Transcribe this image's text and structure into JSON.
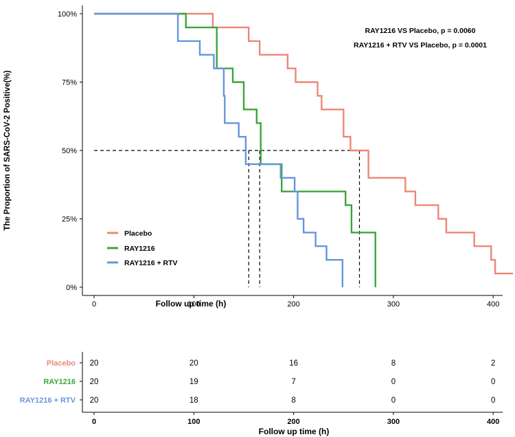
{
  "chart_data": {
    "type": "line",
    "subtype": "kaplan-meier-step",
    "title": "",
    "xlabel": "Follow up time (h)",
    "ylabel": "The Proportion of SARS-CoV-2 Positive(%)",
    "xlim": [
      -12,
      420
    ],
    "ylim": [
      0,
      1
    ],
    "xticks": [
      0,
      100,
      200,
      300,
      400
    ],
    "yticks": [
      0,
      0.25,
      0.5,
      0.75,
      1.0
    ],
    "ytick_labels": [
      "0%",
      "25%",
      "50%",
      "75%",
      "100%"
    ],
    "legend_position": "bottom-left",
    "colors": {
      "Placebo": "#ee8577",
      "RAY1216": "#3aa53a",
      "RAY1216 + RTV": "#6495e0"
    },
    "annotations": [
      "RAY1216 VS Placebo, p = 0.0060",
      "RAY1216 + RTV VS Placebo, p = 0.0001"
    ],
    "median_line": {
      "y": 0.5,
      "x_start": 0,
      "medians": [
        155,
        166,
        266
      ]
    },
    "series": [
      {
        "name": "Placebo",
        "color": "#ee8577",
        "x": [
          0,
          119,
          155,
          166,
          194,
          202,
          224,
          228,
          250,
          257,
          275,
          312,
          322,
          345,
          353,
          381,
          398,
          402,
          420
        ],
        "y": [
          1.0,
          0.95,
          0.9,
          0.85,
          0.8,
          0.75,
          0.7,
          0.65,
          0.55,
          0.5,
          0.4,
          0.35,
          0.3,
          0.25,
          0.2,
          0.15,
          0.1,
          0.05,
          0.05
        ]
      },
      {
        "name": "RAY1216",
        "color": "#3aa53a",
        "x": [
          0,
          92,
          123,
          139,
          150,
          163,
          167,
          188,
          252,
          258,
          282
        ],
        "y": [
          1.0,
          0.95,
          0.8,
          0.75,
          0.65,
          0.6,
          0.45,
          0.35,
          0.3,
          0.2,
          0.0
        ]
      },
      {
        "name": "RAY1216 + RTV",
        "color": "#6495e0",
        "x": [
          0,
          84,
          106,
          120,
          130,
          131,
          145,
          152,
          156,
          187,
          201,
          204,
          210,
          222,
          233,
          249
        ],
        "y": [
          1.0,
          0.9,
          0.85,
          0.8,
          0.7,
          0.6,
          0.55,
          0.45,
          0.45,
          0.4,
          0.35,
          0.25,
          0.2,
          0.15,
          0.1,
          0.0
        ]
      }
    ],
    "risk_table": {
      "xlabel": "Follow up time (h)",
      "times": [
        0,
        100,
        200,
        300,
        400
      ],
      "rows": [
        {
          "name": "Placebo",
          "color": "#ee8577",
          "counts": [
            "20",
            "20",
            "16",
            "8",
            "2"
          ]
        },
        {
          "name": "RAY1216",
          "color": "#3aa53a",
          "counts": [
            "20",
            "19",
            "7",
            "0",
            "0"
          ]
        },
        {
          "name": "RAY1216 + RTV",
          "color": "#6495e0",
          "counts": [
            "20",
            "18",
            "8",
            "0",
            "0"
          ]
        }
      ]
    }
  }
}
